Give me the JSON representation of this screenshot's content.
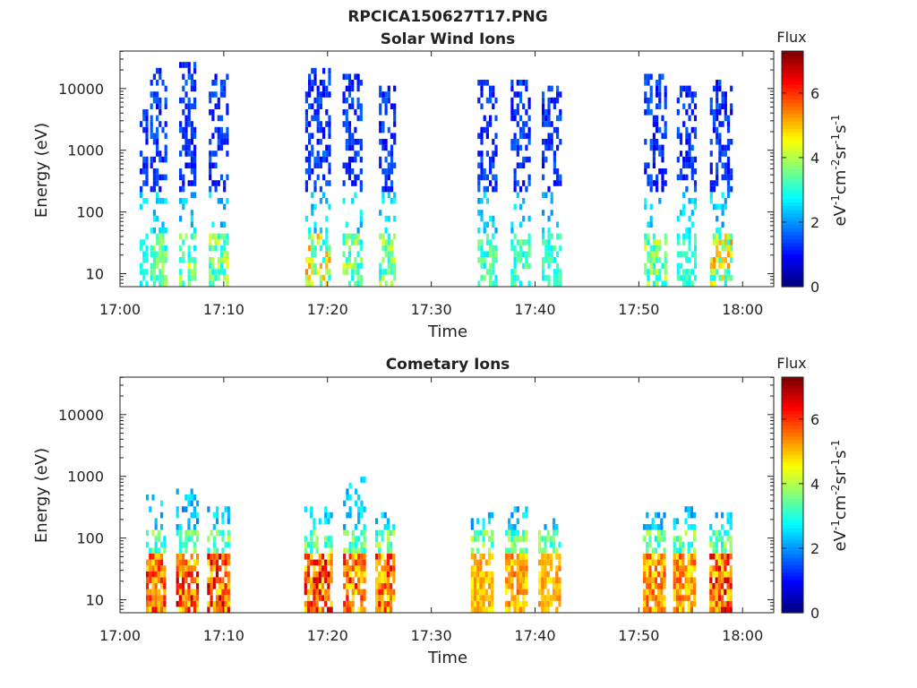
{
  "figure_title": "RPCICA150627T17.PNG",
  "chart_data": [
    {
      "type": "heatmap",
      "title": "Solar Wind Ions",
      "xlabel": "Time",
      "ylabel": "Energy (eV)",
      "y_scale": "log",
      "ylim": [
        6,
        45000
      ],
      "xlim": [
        "17:00",
        "18:03"
      ],
      "x_ticks": [
        "17:00",
        "17:10",
        "17:20",
        "17:30",
        "17:40",
        "17:50",
        "18:00"
      ],
      "y_ticks": [
        "10",
        "100",
        "1000",
        "10000"
      ],
      "colorbar": {
        "title": "Flux",
        "label": "eV-1cm-2sr-1s-1",
        "range": [
          0,
          7.3
        ],
        "ticks": [
          "0",
          "2",
          "4",
          "6"
        ],
        "colormap": "jet"
      },
      "bursts": [
        {
          "center": "17:02.3",
          "width_min": 0.8,
          "emax_ev": 5000,
          "peak_flux": 3.0
        },
        {
          "center": "17:03.7",
          "width_min": 1.6,
          "emax_ev": 25000,
          "peak_flux": 4.0
        },
        {
          "center": "17:06.5",
          "width_min": 1.6,
          "emax_ev": 30000,
          "peak_flux": 5.0
        },
        {
          "center": "17:09.4",
          "width_min": 1.7,
          "emax_ev": 20000,
          "peak_flux": 4.5
        },
        {
          "center": "17:19.0",
          "width_min": 2.3,
          "emax_ev": 25000,
          "peak_flux": 5.5
        },
        {
          "center": "17:22.4",
          "width_min": 1.9,
          "emax_ev": 20000,
          "peak_flux": 4.5
        },
        {
          "center": "17:25.7",
          "width_min": 1.5,
          "emax_ev": 12000,
          "peak_flux": 4.5
        },
        {
          "center": "17:35.4",
          "width_min": 1.9,
          "emax_ev": 15000,
          "peak_flux": 3.8
        },
        {
          "center": "17:38.6",
          "width_min": 1.9,
          "emax_ev": 15000,
          "peak_flux": 3.8
        },
        {
          "center": "17:41.6",
          "width_min": 1.9,
          "emax_ev": 12000,
          "peak_flux": 3.5
        },
        {
          "center": "17:51.5",
          "width_min": 2.0,
          "emax_ev": 20000,
          "peak_flux": 4.5
        },
        {
          "center": "17:54.6",
          "width_min": 1.9,
          "emax_ev": 12000,
          "peak_flux": 3.5
        },
        {
          "center": "17:57.9",
          "width_min": 2.1,
          "emax_ev": 15000,
          "peak_flux": 5.5
        }
      ]
    },
    {
      "type": "heatmap",
      "title": "Cometary Ions",
      "xlabel": "Time",
      "ylabel": "Energy (eV)",
      "y_scale": "log",
      "ylim": [
        6,
        45000
      ],
      "xlim": [
        "17:00",
        "18:03"
      ],
      "x_ticks": [
        "17:00",
        "17:10",
        "17:20",
        "17:30",
        "17:40",
        "17:50",
        "18:00"
      ],
      "y_ticks": [
        "10",
        "100",
        "1000",
        "10000"
      ],
      "colorbar": {
        "title": "Flux",
        "label": "eV-1cm-2sr-1s-1",
        "range": [
          0,
          7.3
        ],
        "ticks": [
          "0",
          "2",
          "4",
          "6"
        ],
        "colormap": "jet"
      },
      "bursts": [
        {
          "center": "17:03.4",
          "width_min": 1.8,
          "emax_ev": 600,
          "peak_flux": 6.5
        },
        {
          "center": "17:06.4",
          "width_min": 2.0,
          "emax_ev": 700,
          "peak_flux": 7.0
        },
        {
          "center": "17:09.4",
          "width_min": 2.0,
          "emax_ev": 400,
          "peak_flux": 7.0
        },
        {
          "center": "17:19.0",
          "width_min": 2.5,
          "emax_ev": 350,
          "peak_flux": 7.0
        },
        {
          "center": "17:22.5",
          "width_min": 2.0,
          "emax_ev": 1000,
          "peak_flux": 6.5
        },
        {
          "center": "17:25.5",
          "width_min": 1.8,
          "emax_ev": 300,
          "peak_flux": 6.5
        },
        {
          "center": "17:34.8",
          "width_min": 2.0,
          "emax_ev": 300,
          "peak_flux": 5.5
        },
        {
          "center": "17:38.2",
          "width_min": 2.2,
          "emax_ev": 400,
          "peak_flux": 5.8
        },
        {
          "center": "17:41.4",
          "width_min": 2.2,
          "emax_ev": 250,
          "peak_flux": 5.5
        },
        {
          "center": "17:51.4",
          "width_min": 2.0,
          "emax_ev": 300,
          "peak_flux": 6.0
        },
        {
          "center": "17:54.4",
          "width_min": 2.2,
          "emax_ev": 350,
          "peak_flux": 6.0
        },
        {
          "center": "17:57.8",
          "width_min": 2.0,
          "emax_ev": 300,
          "peak_flux": 7.0
        }
      ]
    }
  ]
}
